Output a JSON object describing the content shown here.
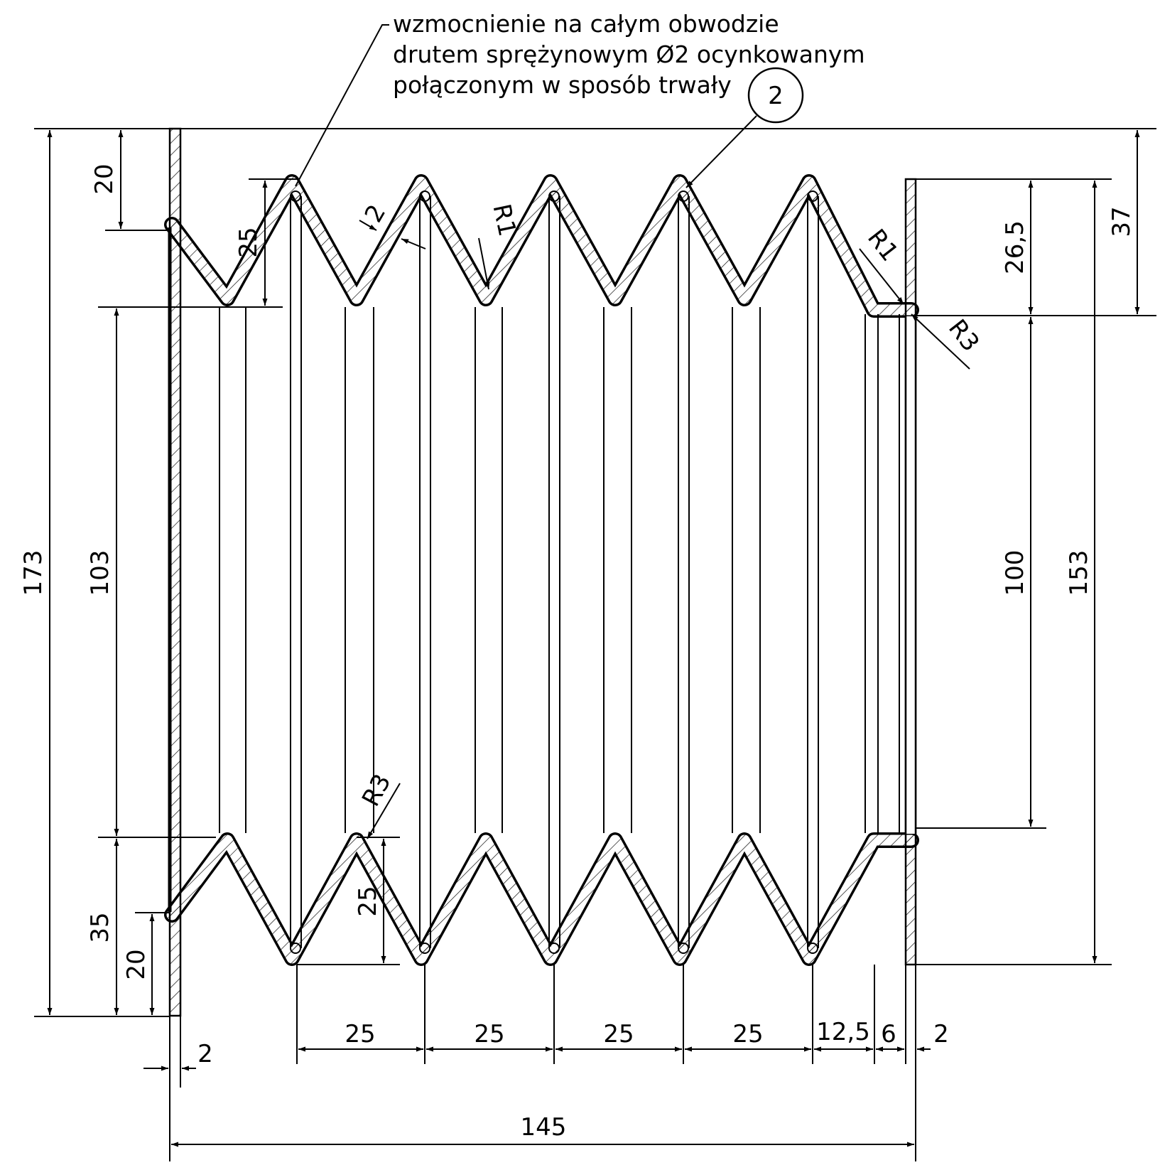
{
  "drawing": {
    "note_lines": [
      "wzmocnienie na całym obwodzie",
      "drutem sprężynowym Ø2 ocynkowanym",
      "połączonym w sposób trwały"
    ],
    "balloon": "2",
    "dimensions": {
      "overall_height": "173",
      "top_flange_offset": "20",
      "inner_diameter_left": "103",
      "bottom_left_height": "35",
      "bottom_flange_offset": "20",
      "fold_depth_top": "25",
      "fold_depth_bottom": "25",
      "wall_thickness": "2",
      "right_top_offset": "37",
      "right_fold_depth": "26,5",
      "inner_diameter_right": "100",
      "right_flange_height": "153",
      "pitches": [
        "25",
        "25",
        "25",
        "25"
      ],
      "end_pitch": "12,5",
      "end_width": "6",
      "end_thickness": "2",
      "left_flange_thickness": "2",
      "overall_length": "145"
    },
    "radius_labels": {
      "top_fold_radius": "R1",
      "right_fold_radius": "R1",
      "right_corner_radius": "R3",
      "bottom_fold_radius": "R3"
    }
  }
}
